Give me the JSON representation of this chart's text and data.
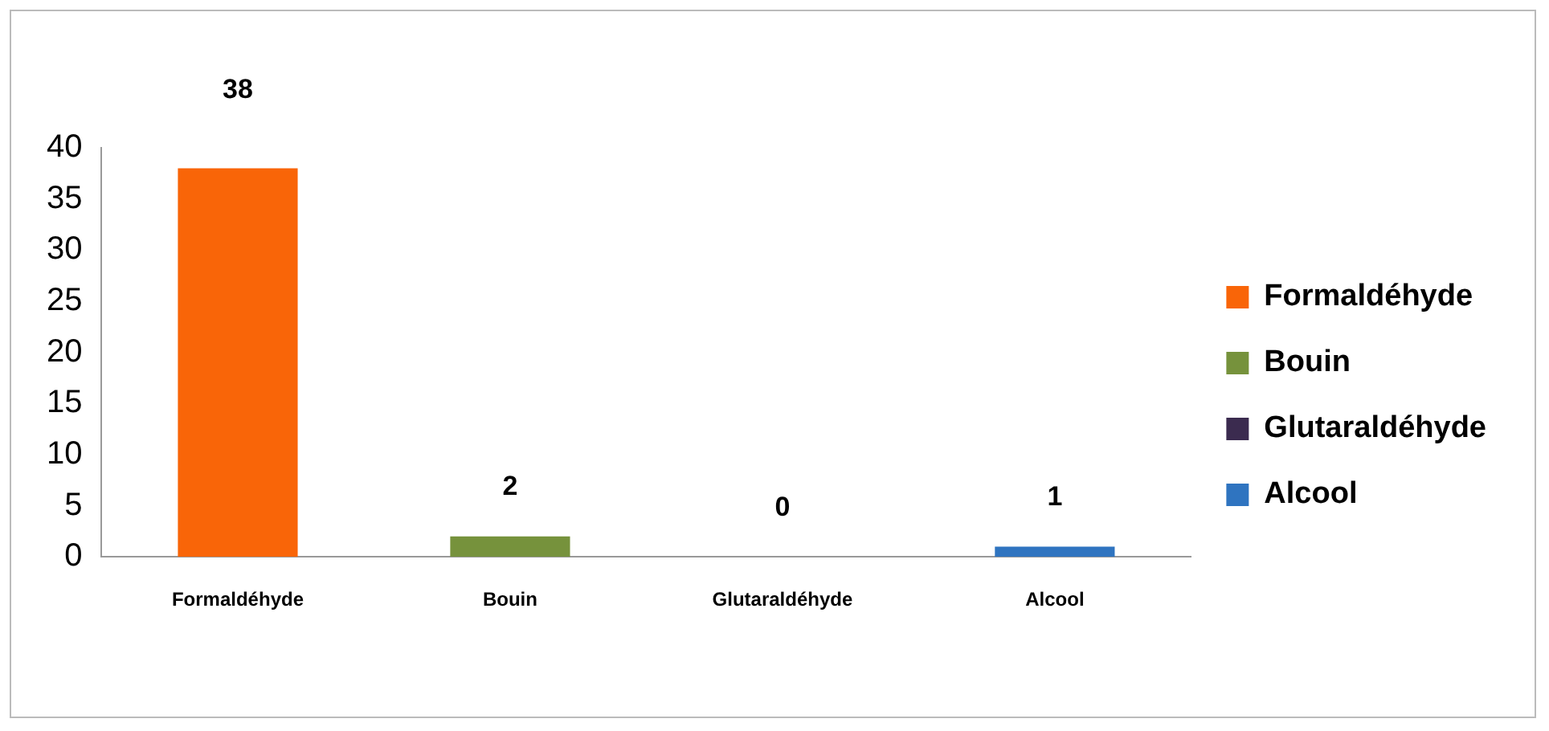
{
  "chart_data": {
    "type": "bar",
    "categories": [
      "Formaldéhyde",
      "Bouin",
      "Glutaraldéhyde",
      "Alcool"
    ],
    "series": [
      {
        "name": "Formaldéhyde",
        "color": "#f96508",
        "values": [
          38,
          null,
          null,
          null
        ]
      },
      {
        "name": "Bouin",
        "color": "#76923c",
        "values": [
          null,
          2,
          null,
          null
        ]
      },
      {
        "name": "Glutaraldéhyde",
        "color": "#3b2b4f",
        "values": [
          null,
          null,
          0,
          null
        ]
      },
      {
        "name": "Alcool",
        "color": "#2f74c0",
        "values": [
          null,
          null,
          null,
          1
        ]
      }
    ],
    "ylim": [
      0,
      40
    ],
    "yticks": [
      0,
      5,
      10,
      15,
      20,
      25,
      30,
      35,
      40
    ],
    "grid": false,
    "legend": "right",
    "data_labels": true
  }
}
